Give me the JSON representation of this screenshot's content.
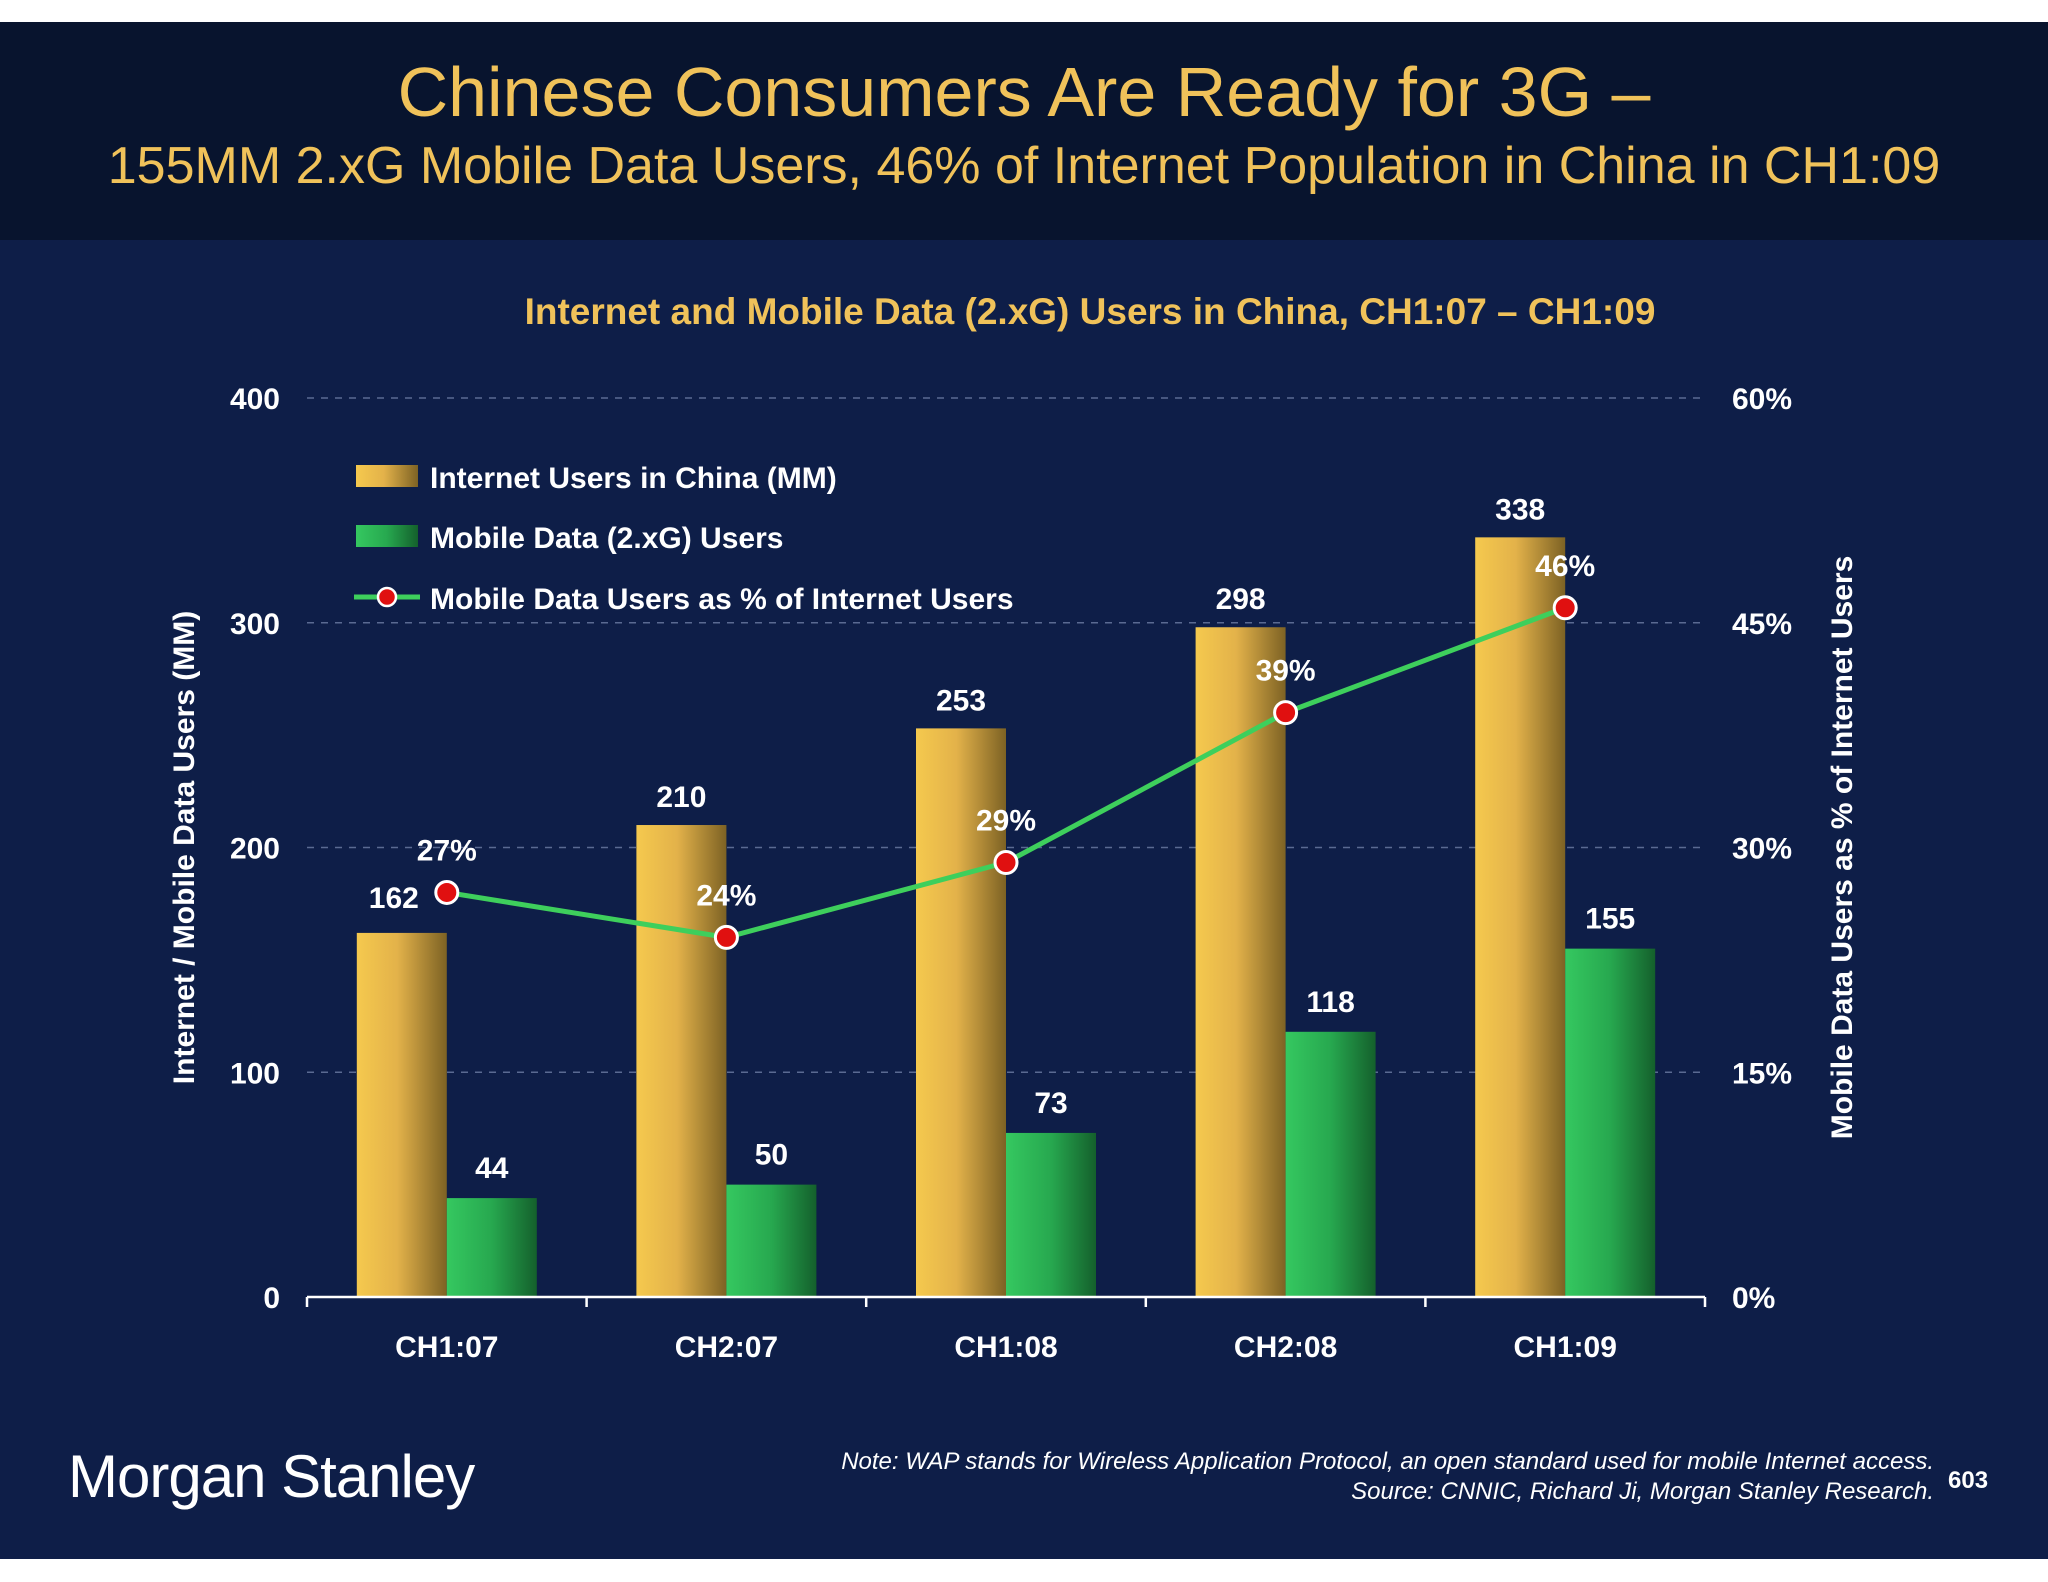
{
  "slide": {
    "headline": "Chinese Consumers Are Ready for 3G –",
    "subheadline": "155MM 2.xG Mobile Data Users, 46% of Internet Population in China in CH1:09",
    "logo_text": "Morgan Stanley",
    "note_line1": "Note: WAP stands for Wireless Application Protocol, an open standard used for mobile Internet access.",
    "note_line2": "Source: CNNIC, Richard Ji, Morgan Stanley Research.",
    "page_number": "603"
  },
  "colors": {
    "background": "#0e1e48",
    "header_background": "#08142e",
    "title_gold": "#f0c25a",
    "bar_gold": "#d9a83a",
    "bar_green": "#2bb55a",
    "line_green": "#3ecf5c",
    "marker_red": "#e01010"
  },
  "chart_data": {
    "type": "bar",
    "title": "Internet and Mobile Data (2.xG) Users in China, CH1:07 – CH1:09",
    "categories": [
      "CH1:07",
      "CH2:07",
      "CH1:08",
      "CH2:08",
      "CH1:09"
    ],
    "ylabel": "Internet / Mobile Data Users (MM)",
    "y2label": "Mobile Data Users as % of Internet Users",
    "ylim": [
      0,
      400
    ],
    "y2lim": [
      0,
      60
    ],
    "yticks": [
      0,
      100,
      200,
      300,
      400
    ],
    "yticklabels": [
      "0",
      "100",
      "200",
      "300",
      "400"
    ],
    "y2ticks": [
      0,
      15,
      30,
      45,
      60
    ],
    "y2ticklabels": [
      "0%",
      "15%",
      "30%",
      "45%",
      "60%"
    ],
    "grid": "dashed horizontal",
    "legend_position": "top-left",
    "series": [
      {
        "name": "Internet Users in China (MM)",
        "type": "bar",
        "axis": "left",
        "values": [
          162,
          210,
          253,
          298,
          338
        ],
        "labels": [
          "162",
          "210",
          "253",
          "298",
          "338"
        ]
      },
      {
        "name": "Mobile Data (2.xG) Users",
        "type": "bar",
        "axis": "left",
        "values": [
          44,
          50,
          73,
          118,
          155
        ],
        "labels": [
          "44",
          "50",
          "73",
          "118",
          "155"
        ]
      },
      {
        "name": "Mobile Data Users as % of Internet Users",
        "type": "line",
        "axis": "right",
        "values": [
          27,
          24,
          29,
          39,
          46
        ],
        "labels": [
          "27%",
          "24%",
          "29%",
          "39%",
          "46%"
        ]
      }
    ]
  }
}
